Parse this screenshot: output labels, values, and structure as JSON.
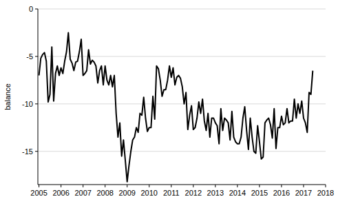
{
  "chart_data": {
    "type": "line",
    "y_label": "balance",
    "color": "#000000",
    "grid": true,
    "xlim": [
      2004.95,
      2018
    ],
    "ylim": [
      -18.5,
      0
    ],
    "xticks": [
      2005,
      2006,
      2007,
      2008,
      2009,
      2010,
      2011,
      2012,
      2013,
      2014,
      2015,
      2016,
      2017,
      2018
    ],
    "yticks": [
      -15,
      -10,
      -5,
      0
    ],
    "x": [
      2005,
      2005.083,
      2005.167,
      2005.25,
      2005.333,
      2005.417,
      2005.5,
      2005.583,
      2005.667,
      2005.75,
      2005.833,
      2005.917,
      2006,
      2006.083,
      2006.167,
      2006.25,
      2006.333,
      2006.417,
      2006.5,
      2006.583,
      2006.667,
      2006.75,
      2006.833,
      2006.917,
      2007,
      2007.083,
      2007.167,
      2007.25,
      2007.333,
      2007.417,
      2007.5,
      2007.583,
      2007.667,
      2007.75,
      2007.833,
      2007.917,
      2008,
      2008.083,
      2008.167,
      2008.25,
      2008.333,
      2008.417,
      2008.5,
      2008.583,
      2008.667,
      2008.75,
      2008.833,
      2008.917,
      2009,
      2009.083,
      2009.167,
      2009.25,
      2009.333,
      2009.417,
      2009.5,
      2009.583,
      2009.667,
      2009.75,
      2009.833,
      2009.917,
      2010,
      2010.083,
      2010.167,
      2010.25,
      2010.333,
      2010.417,
      2010.5,
      2010.583,
      2010.667,
      2010.75,
      2010.833,
      2010.917,
      2011,
      2011.083,
      2011.167,
      2011.25,
      2011.333,
      2011.417,
      2011.5,
      2011.583,
      2011.667,
      2011.75,
      2011.833,
      2011.917,
      2012,
      2012.083,
      2012.167,
      2012.25,
      2012.333,
      2012.417,
      2012.5,
      2012.583,
      2012.667,
      2012.75,
      2012.833,
      2012.917,
      2013,
      2013.083,
      2013.167,
      2013.25,
      2013.333,
      2013.417,
      2013.5,
      2013.583,
      2013.667,
      2013.75,
      2013.833,
      2013.917,
      2014,
      2014.083,
      2014.167,
      2014.25,
      2014.333,
      2014.417,
      2014.5,
      2014.583,
      2014.667,
      2014.75,
      2014.833,
      2014.917,
      2015,
      2015.083,
      2015.167,
      2015.25,
      2015.333,
      2015.417,
      2015.5,
      2015.583,
      2015.667,
      2015.75,
      2015.833,
      2015.917,
      2016,
      2016.083,
      2016.167,
      2016.25,
      2016.333,
      2016.417,
      2016.5,
      2016.583,
      2016.667,
      2016.75,
      2016.833,
      2016.917,
      2017,
      2017.083,
      2017.167,
      2017.25,
      2017.333,
      2017.417
    ],
    "values": [
      -7.0,
      -5.2,
      -4.8,
      -4.6,
      -5.5,
      -9.8,
      -9.0,
      -4.0,
      -9.7,
      -6.8,
      -6.0,
      -7.0,
      -6.2,
      -6.8,
      -5.5,
      -4.5,
      -2.5,
      -5.3,
      -5.7,
      -6.5,
      -5.6,
      -5.5,
      -4.5,
      -3.2,
      -7.0,
      -6.8,
      -6.5,
      -4.3,
      -5.8,
      -5.4,
      -5.6,
      -6.0,
      -7.8,
      -6.5,
      -6.0,
      -8.0,
      -6.0,
      -7.5,
      -8.0,
      -7.0,
      -8.2,
      -7.0,
      -11.0,
      -13.5,
      -12.0,
      -15.5,
      -13.8,
      -16.0,
      -18.2,
      -16.5,
      -15.0,
      -13.8,
      -13.5,
      -12.5,
      -13.0,
      -11.0,
      -11.2,
      -9.3,
      -11.5,
      -12.9,
      -12.5,
      -12.5,
      -9.2,
      -11.6,
      -6.0,
      -6.3,
      -7.5,
      -9.2,
      -8.5,
      -8.5,
      -7.5,
      -6.0,
      -7.2,
      -6.2,
      -8.0,
      -7.2,
      -7.0,
      -7.3,
      -8.2,
      -10.0,
      -8.8,
      -12.7,
      -11.2,
      -10.2,
      -12.7,
      -12.5,
      -11.5,
      -9.8,
      -11.0,
      -9.5,
      -11.8,
      -12.8,
      -11.0,
      -13.5,
      -11.5,
      -11.5,
      -12.0,
      -12.3,
      -14.2,
      -10.5,
      -12.8,
      -11.5,
      -11.7,
      -12.0,
      -13.8,
      -10.8,
      -13.5,
      -14.0,
      -14.2,
      -14.2,
      -13.5,
      -11.5,
      -10.3,
      -12.8,
      -14.8,
      -11.5,
      -13.5,
      -15.0,
      -15.2,
      -12.3,
      -14.0,
      -15.8,
      -15.6,
      -12.0,
      -11.7,
      -11.5,
      -12.2,
      -13.6,
      -10.5,
      -14.7,
      -12.5,
      -12.5,
      -11.3,
      -12.2,
      -12.0,
      -10.5,
      -12.0,
      -11.8,
      -11.8,
      -9.5,
      -11.5,
      -10.0,
      -11.0,
      -9.7,
      -11.5,
      -12.0,
      -13.0,
      -8.8,
      -9.0,
      -6.5
    ]
  }
}
